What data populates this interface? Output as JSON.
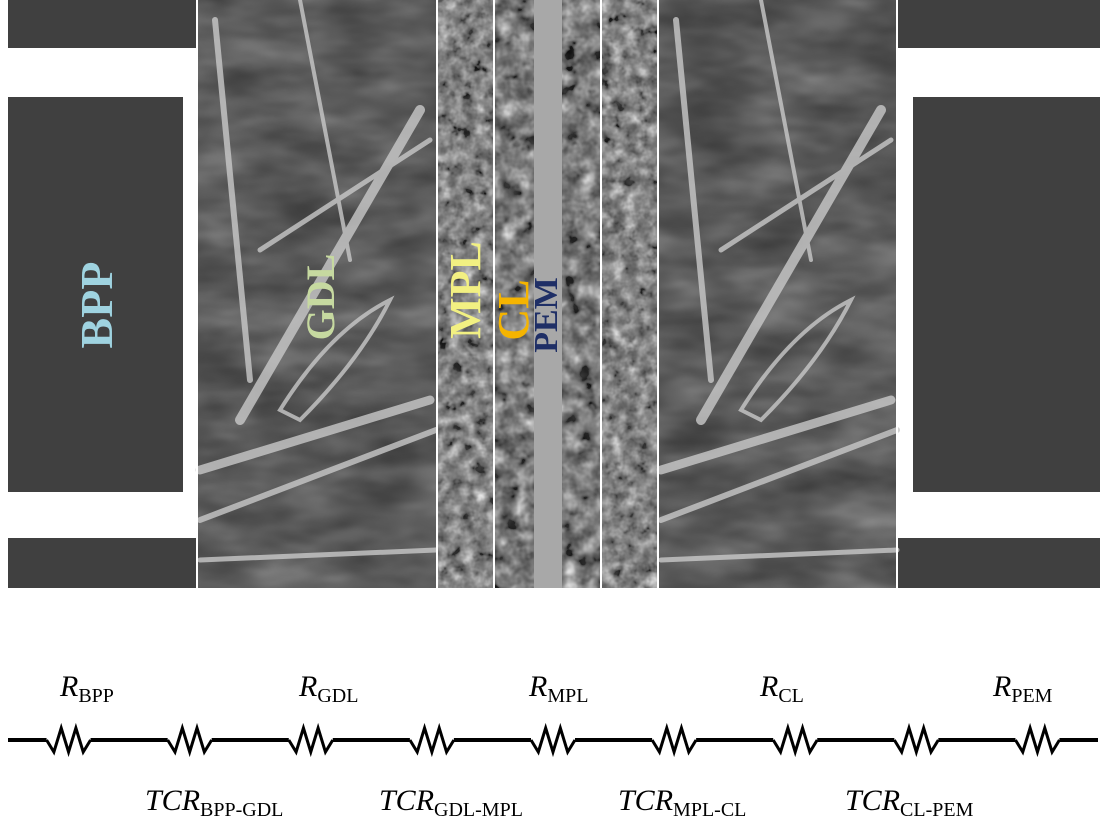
{
  "layers": {
    "bpp_label": "BPP",
    "gdl_label": "GDL",
    "mpl_label": "MPL",
    "cl_label": "CL",
    "pem_label": "PEM"
  },
  "colors": {
    "plate": "#404040",
    "bpp_label": "#9fd3e0",
    "gdl_label": "#c6d9a0",
    "mpl_label": "#f2f082",
    "cl_label": "#f5b400",
    "pem_label": "#1f2f66",
    "wire": "#000000"
  },
  "circuit": {
    "resistances": [
      {
        "main": "R",
        "sub": "BPP"
      },
      {
        "main": "R",
        "sub": "GDL"
      },
      {
        "main": "R",
        "sub": "MPL"
      },
      {
        "main": "R",
        "sub": "CL"
      },
      {
        "main": "R",
        "sub": "PEM"
      }
    ],
    "contact_resistances": [
      {
        "main": "TCR",
        "sub": "BPP-GDL"
      },
      {
        "main": "TCR",
        "sub": "GDL-MPL"
      },
      {
        "main": "TCR",
        "sub": "MPL-CL"
      },
      {
        "main": "TCR",
        "sub": "CL-PEM"
      }
    ]
  }
}
